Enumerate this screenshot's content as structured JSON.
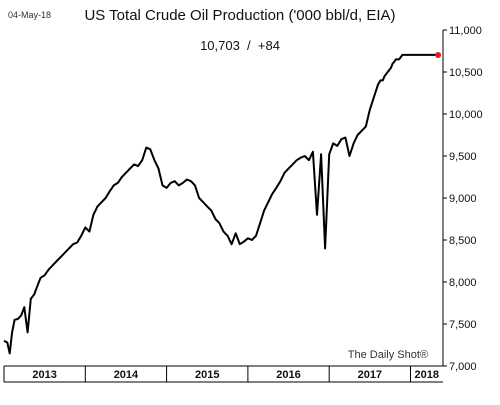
{
  "chart_data": {
    "type": "line",
    "title": "US Total Crude Oil Production ('000 bbl/d, EIA)",
    "date_label": "04-May-18",
    "subtitle": "10,703  /  +84",
    "source": "The Daily Shot®",
    "ylim": [
      7000,
      11000
    ],
    "yticks": [
      7000,
      7500,
      8000,
      8500,
      9000,
      9500,
      10000,
      10500,
      11000
    ],
    "ytick_labels": [
      "7,000",
      "7,500",
      "8,000",
      "8,500",
      "9,000",
      "9,500",
      "10,000",
      "10,500",
      "11,000"
    ],
    "x_range": [
      2013.0,
      2018.4
    ],
    "x_categories": [
      "2013",
      "2014",
      "2015",
      "2016",
      "2017",
      "2018"
    ],
    "grid": false,
    "legend": "none",
    "line_color": "#000000",
    "highlight_color": "#e02020",
    "series": [
      {
        "x": [
          2013.0,
          2013.04,
          2013.07,
          2013.1,
          2013.13,
          2013.17,
          2013.21,
          2013.25,
          2013.29,
          2013.33,
          2013.37,
          2013.41,
          2013.45,
          2013.5,
          2013.55,
          2013.6,
          2013.65,
          2013.7,
          2013.75,
          2013.8,
          2013.85,
          2013.9,
          2013.95,
          2014.0,
          2014.05,
          2014.1,
          2014.15,
          2014.2,
          2014.25,
          2014.3,
          2014.35,
          2014.4,
          2014.45,
          2014.5,
          2014.55,
          2014.6,
          2014.65,
          2014.7,
          2014.75,
          2014.8,
          2014.85,
          2014.9,
          2014.95,
          2015.0,
          2015.05,
          2015.1,
          2015.15,
          2015.2,
          2015.25,
          2015.3,
          2015.35,
          2015.4,
          2015.45,
          2015.5,
          2015.55,
          2015.6,
          2015.65,
          2015.7,
          2015.75,
          2015.8,
          2015.85,
          2015.9,
          2015.95,
          2016.0,
          2016.05,
          2016.1,
          2016.15,
          2016.2,
          2016.25,
          2016.3,
          2016.35,
          2016.4,
          2016.45,
          2016.5,
          2016.55,
          2016.6,
          2016.65,
          2016.7,
          2016.75,
          2016.8,
          2016.85,
          2016.9,
          2016.95,
          2017.0,
          2017.05,
          2017.1,
          2017.15,
          2017.2,
          2017.25,
          2017.3,
          2017.35,
          2017.4,
          2017.45,
          2017.5,
          2017.55,
          2017.6,
          2017.63,
          2017.66,
          2017.68,
          2017.72,
          2017.76,
          2017.78,
          2017.8,
          2017.82,
          2017.86,
          2017.9,
          2017.95,
          2018.0,
          2018.03,
          2018.06,
          2018.1,
          2018.15,
          2018.2,
          2018.25,
          2018.3,
          2018.34
        ],
        "y": [
          7300,
          7280,
          7150,
          7400,
          7550,
          7560,
          7600,
          7700,
          7400,
          7800,
          7850,
          7950,
          8050,
          8080,
          8150,
          8200,
          8250,
          8300,
          8350,
          8400,
          8450,
          8470,
          8550,
          8650,
          8600,
          8800,
          8900,
          8950,
          9000,
          9080,
          9150,
          9180,
          9250,
          9300,
          9350,
          9400,
          9380,
          9450,
          9600,
          9580,
          9450,
          9350,
          9150,
          9120,
          9180,
          9200,
          9150,
          9180,
          9220,
          9200,
          9150,
          9000,
          8950,
          8900,
          8850,
          8750,
          8700,
          8600,
          8550,
          8450,
          8580,
          8450,
          8480,
          8520,
          8500,
          8550,
          8700,
          8850,
          8950,
          9050,
          9120,
          9200,
          9300,
          9350,
          9400,
          9450,
          9480,
          9500,
          9450,
          9550,
          8800,
          9520,
          8400,
          9520,
          9650,
          9620,
          9700,
          9720,
          9500,
          9650,
          9750,
          9800,
          9850,
          10050,
          10200,
          10350,
          10400,
          10400,
          10450,
          10500,
          10550,
          10600,
          10620,
          10650,
          10650,
          10703,
          10703,
          10703,
          10703,
          10703,
          10703,
          10703,
          10703,
          10703,
          10703,
          10703
        ]
      }
    ]
  }
}
